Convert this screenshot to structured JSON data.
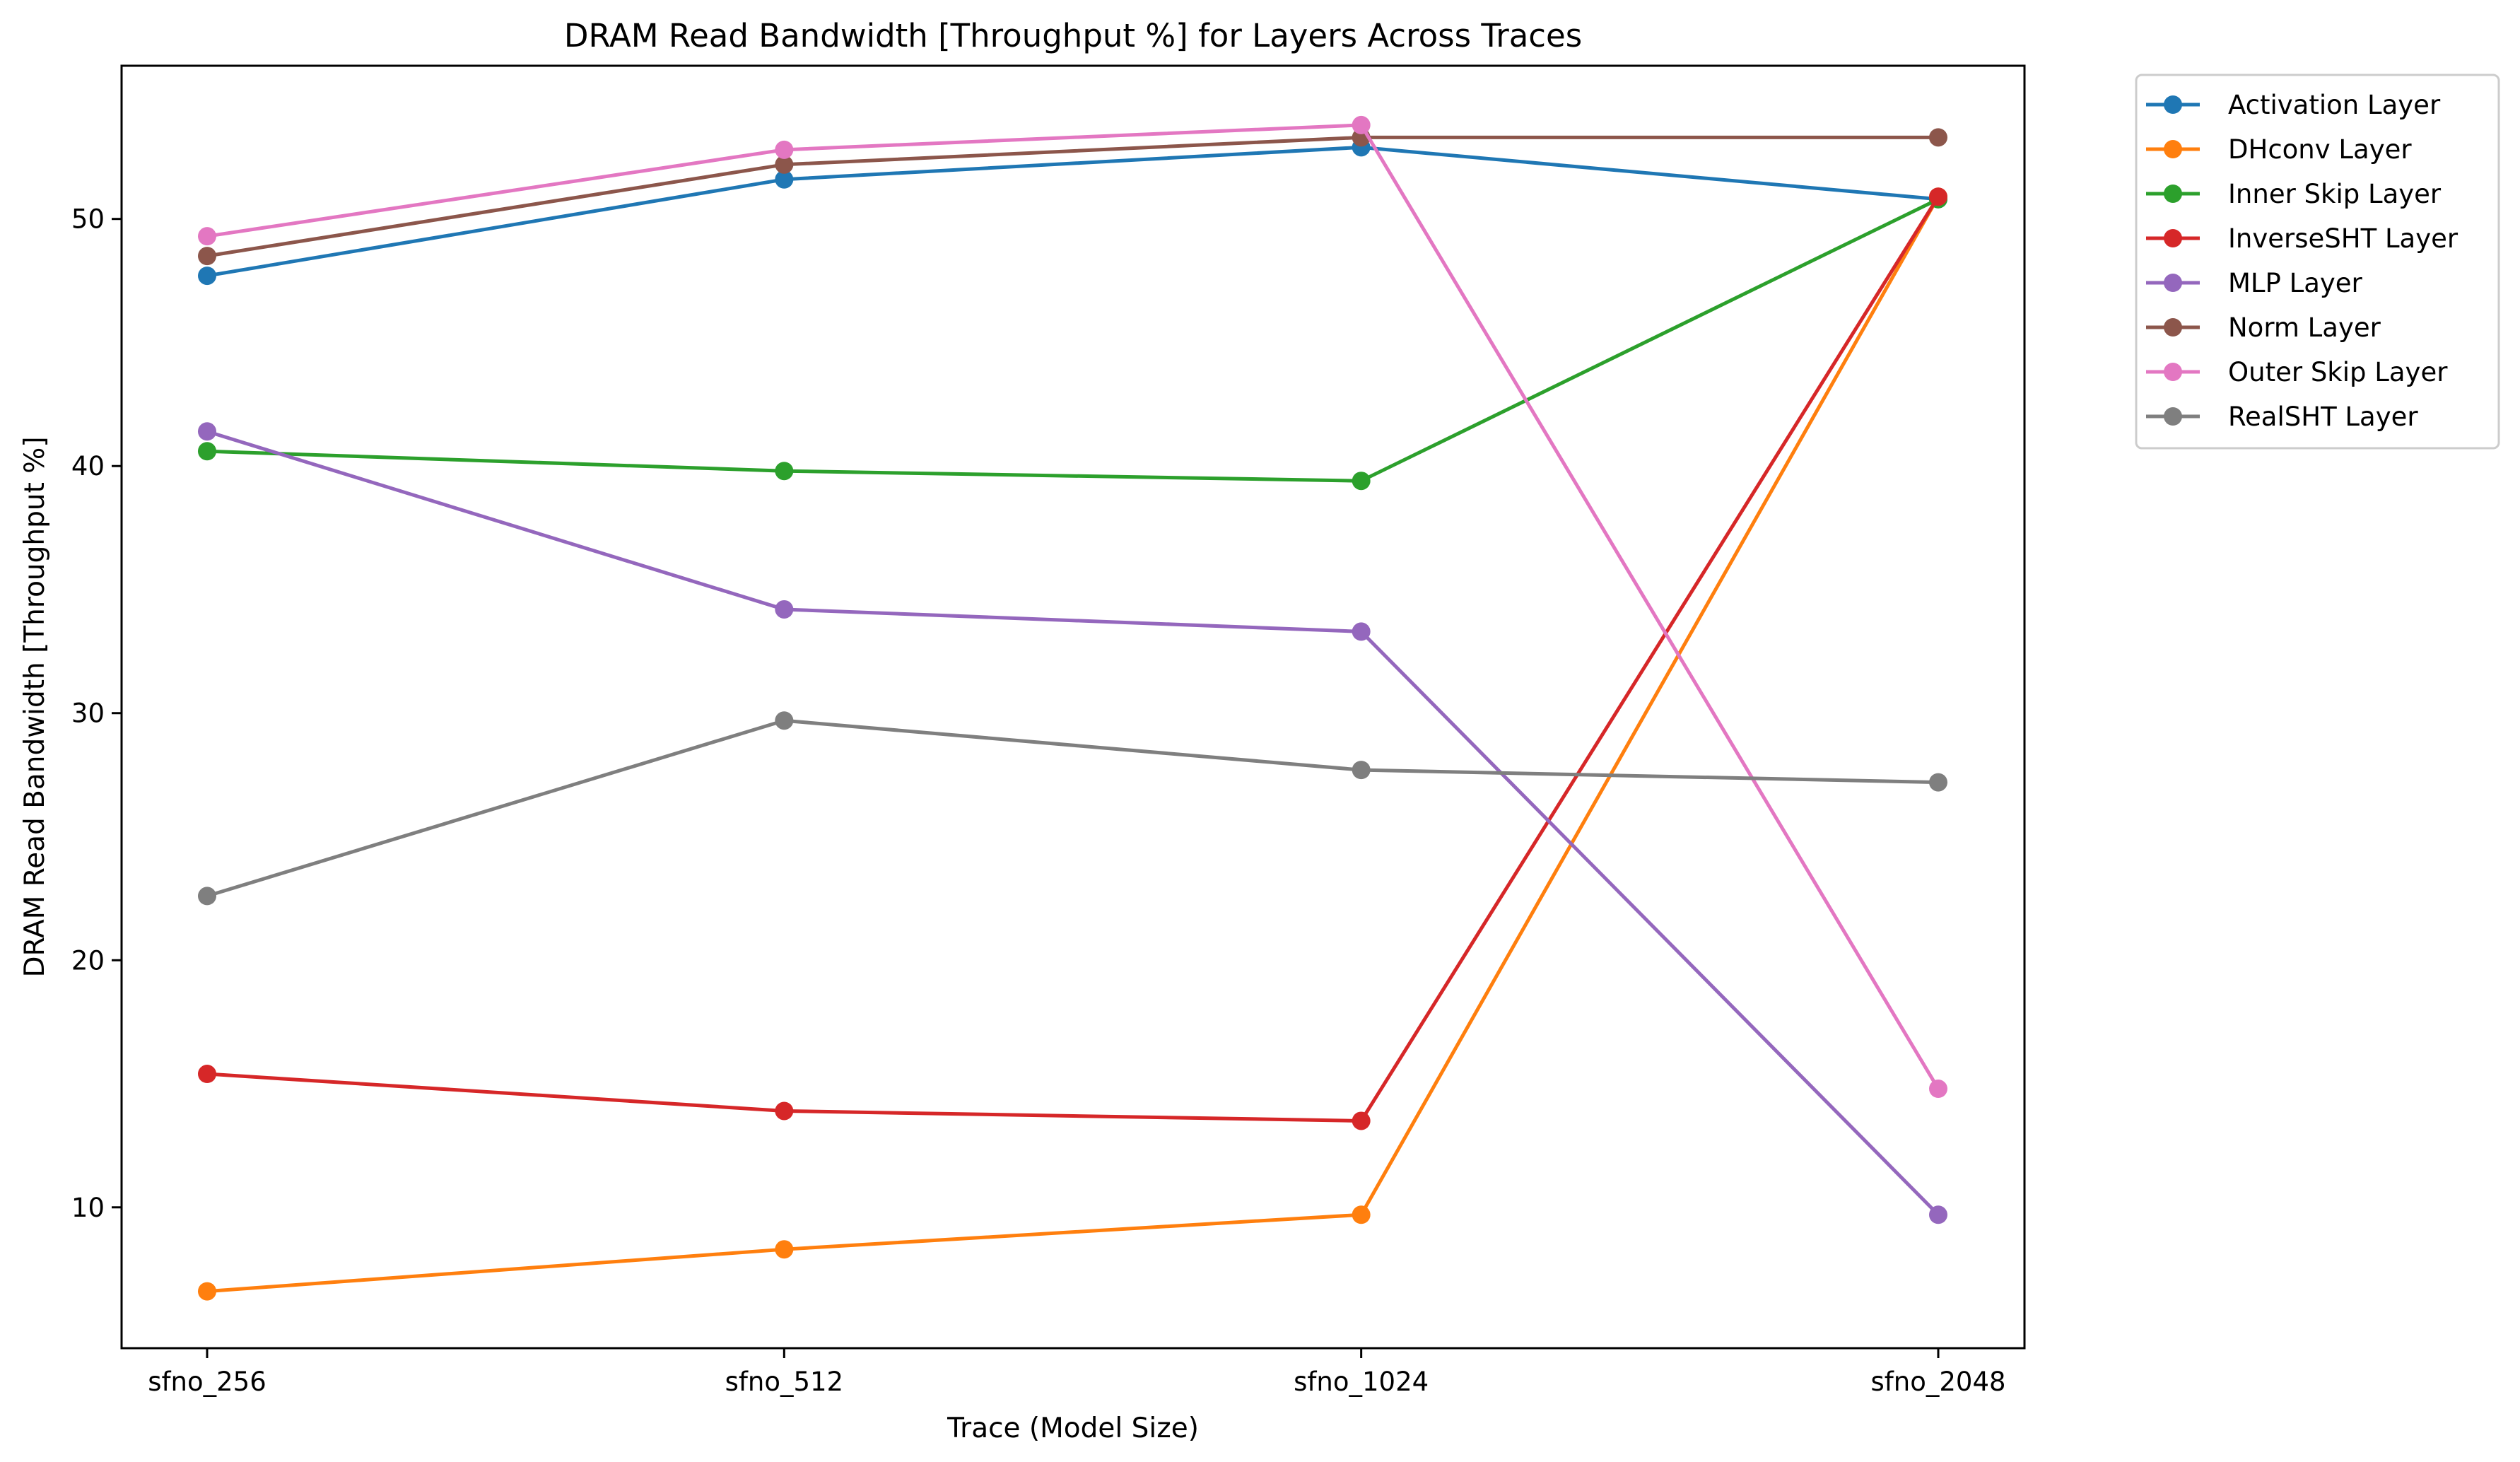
{
  "chart_data": {
    "type": "line",
    "title": "DRAM Read Bandwidth [Throughput %] for Layers Across Traces",
    "xlabel": "Trace (Model Size)",
    "ylabel": "DRAM Read Bandwidth [Throughput %]",
    "categories": [
      "sfno_256",
      "sfno_512",
      "sfno_1024",
      "sfno_2048"
    ],
    "ylim": [
      4.3,
      56.2
    ],
    "yticks": [
      10,
      20,
      30,
      40,
      50
    ],
    "grid": false,
    "legend_position": "outside-top-right",
    "series": [
      {
        "name": "Activation Layer",
        "color": "#1f77b4",
        "values": [
          47.7,
          51.6,
          52.9,
          50.8
        ]
      },
      {
        "name": "DHconv Layer",
        "color": "#ff7f0e",
        "values": [
          6.6,
          8.3,
          9.7,
          50.9
        ]
      },
      {
        "name": "Inner Skip Layer",
        "color": "#2ca02c",
        "values": [
          40.6,
          39.8,
          39.4,
          50.8
        ]
      },
      {
        "name": "InverseSHT Layer",
        "color": "#d62728",
        "values": [
          15.4,
          13.9,
          13.5,
          50.9
        ]
      },
      {
        "name": "MLP Layer",
        "color": "#9467bd",
        "values": [
          41.4,
          34.2,
          33.3,
          9.7
        ]
      },
      {
        "name": "Norm Layer",
        "color": "#8c564b",
        "values": [
          48.5,
          52.2,
          53.3,
          53.3
        ]
      },
      {
        "name": "Outer Skip Layer",
        "color": "#e377c2",
        "values": [
          49.3,
          52.8,
          53.8,
          14.8
        ]
      },
      {
        "name": "RealSHT Layer",
        "color": "#7f7f7f",
        "values": [
          22.6,
          29.7,
          27.7,
          27.2
        ]
      }
    ]
  }
}
